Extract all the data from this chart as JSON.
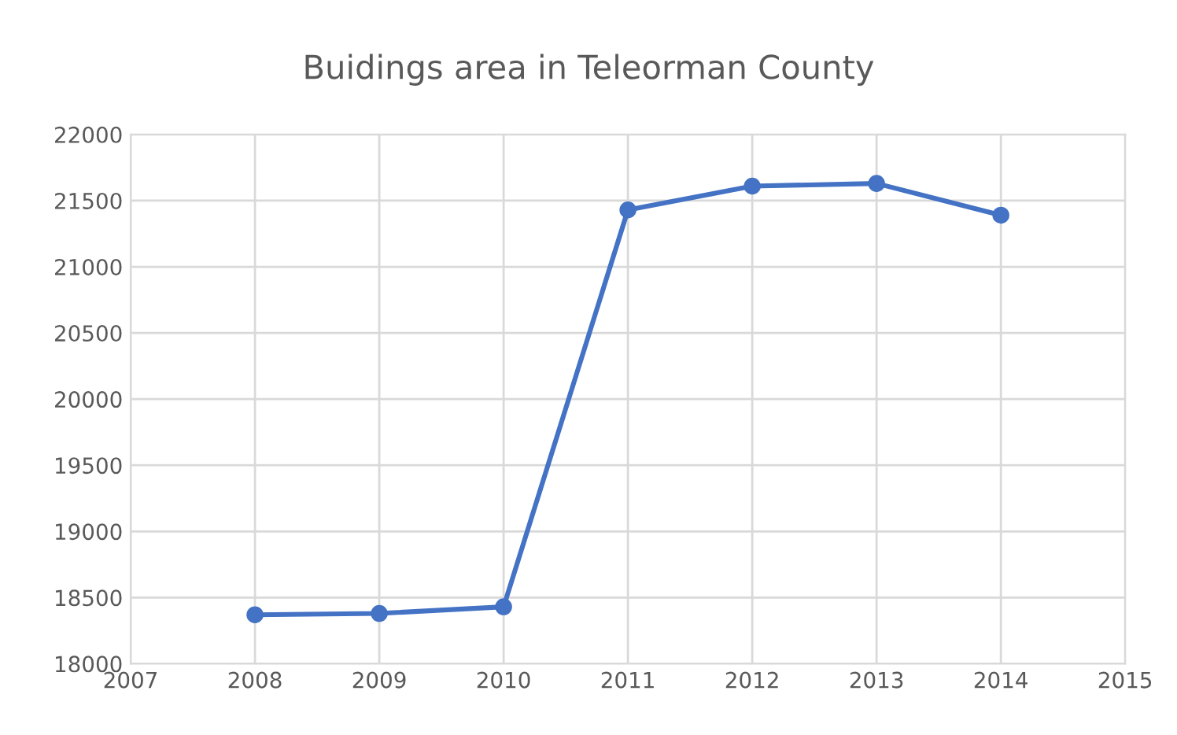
{
  "chart_data": {
    "type": "line",
    "title": "Buidings area in Teleorman County",
    "x": [
      2008,
      2009,
      2010,
      2011,
      2012,
      2013,
      2014
    ],
    "series": [
      {
        "color": "#4472c4",
        "values": [
          18370,
          18380,
          18430,
          21430,
          21610,
          21630,
          21390
        ]
      }
    ],
    "xlim": [
      2007,
      2015
    ],
    "xticks": [
      2007,
      2008,
      2009,
      2010,
      2011,
      2012,
      2013,
      2014,
      2015
    ],
    "ylim": [
      18000,
      22000
    ],
    "yticks": [
      18000,
      18500,
      19000,
      19500,
      20000,
      20500,
      21000,
      21500,
      22000
    ],
    "grid": true,
    "marker": "circle",
    "line_style": "solid"
  }
}
